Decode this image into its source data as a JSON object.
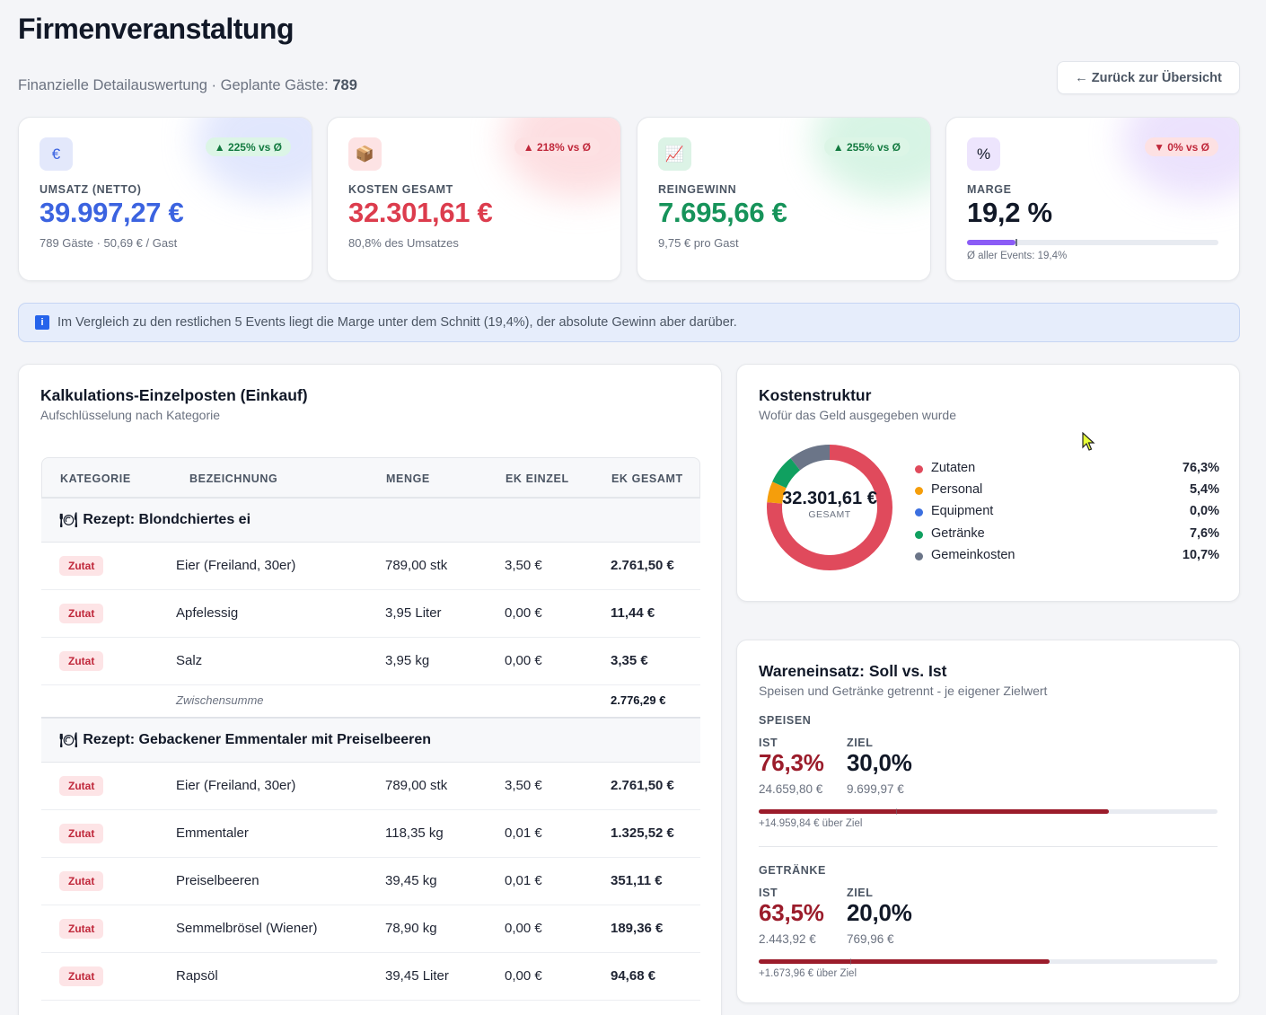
{
  "header": {
    "title": "Firmenveranstaltung",
    "subtitle_prefix": "Finanzielle Detailauswertung · Geplante Gäste:",
    "guests": "789",
    "back_label": "← Zurück zur Übersicht"
  },
  "kpis": [
    {
      "icon": "euro-icon",
      "icon_glyph": "€",
      "badge": "▲ 225% vs Ø",
      "label": "UMSATZ (NETTO)",
      "value": "39.997,27 €",
      "sub": "789 Gäste · 50,69 € / Gast",
      "color": "#3b63e0",
      "badge_bg": "#dcf5e6",
      "badge_fg": "#137a40",
      "icon_bg": "#e3e8fb",
      "glow": "#c9d3fb"
    },
    {
      "icon": "box-icon",
      "icon_glyph": "📦",
      "badge": "▲ 218% vs Ø",
      "label": "KOSTEN GESAMT",
      "value": "32.301,61 €",
      "sub": "80,8% des Umsatzes",
      "color": "#dc3c4d",
      "badge_bg": "#fde1e3",
      "badge_fg": "#c0283b",
      "icon_bg": "#fde3e4",
      "glow": "#fbc4c9"
    },
    {
      "icon": "chart-up-icon",
      "icon_glyph": "📈",
      "badge": "▲ 255% vs Ø",
      "label": "REINGEWINN",
      "value": "7.695,66 €",
      "sub": "9,75 € pro Gast",
      "color": "#16935a",
      "badge_bg": "#dcf5e6",
      "badge_fg": "#137a40",
      "icon_bg": "#dcf3e6",
      "glow": "#b7ebcf"
    },
    {
      "icon": "percent-icon",
      "icon_glyph": "%",
      "badge": "▼ 0% vs Ø",
      "label": "MARGE",
      "value": "19,2 %",
      "sub": "Ø aller Events: 19,4%",
      "color": "#111827",
      "badge_bg": "#fde1e3",
      "badge_fg": "#c0283b",
      "icon_bg": "#ede5fd",
      "glow": "#dccbfb",
      "bar_pct": 19.2,
      "avg_pct": 19.4
    }
  ],
  "info": {
    "icon": "info-icon",
    "text": "Im Vergleich zu den restlichen 5 Events liegt die Marge unter dem Schnitt (19,4%), der absolute Gewinn aber darüber."
  },
  "calc": {
    "title": "Kalkulations-Einzelposten (Einkauf)",
    "subtitle": "Aufschlüsselung nach Kategorie",
    "columns": [
      "KATEGORIE",
      "BEZEICHNUNG",
      "MENGE",
      "EK EINZEL",
      "EK GESAMT"
    ],
    "groups": [
      {
        "title": "Rezept: Blondchiertes ei",
        "rows": [
          {
            "tag": "Zutat",
            "name": "Eier (Freiland, 30er)",
            "qty": "789,00 stk",
            "unit": "3,50 €",
            "total": "2.761,50 €"
          },
          {
            "tag": "Zutat",
            "name": "Apfelessig",
            "qty": "3,95 Liter",
            "unit": "0,00 €",
            "total": "11,44 €"
          },
          {
            "tag": "Zutat",
            "name": "Salz",
            "qty": "3,95 kg",
            "unit": "0,00 €",
            "total": "3,35 €"
          }
        ],
        "subtotal_label": "Zwischensumme",
        "subtotal": "2.776,29 €"
      },
      {
        "title": "Rezept: Gebackener Emmentaler mit Preiselbeeren",
        "rows": [
          {
            "tag": "Zutat",
            "name": "Eier (Freiland, 30er)",
            "qty": "789,00 stk",
            "unit": "3,50 €",
            "total": "2.761,50 €"
          },
          {
            "tag": "Zutat",
            "name": "Emmentaler",
            "qty": "118,35 kg",
            "unit": "0,01 €",
            "total": "1.325,52 €"
          },
          {
            "tag": "Zutat",
            "name": "Preiselbeeren",
            "qty": "39,45 kg",
            "unit": "0,01 €",
            "total": "351,11 €"
          },
          {
            "tag": "Zutat",
            "name": "Semmelbrösel (Wiener)",
            "qty": "78,90 kg",
            "unit": "0,00 €",
            "total": "189,36 €"
          },
          {
            "tag": "Zutat",
            "name": "Rapsöl",
            "qty": "39,45 Liter",
            "unit": "0,00 €",
            "total": "94,68 €"
          }
        ]
      }
    ]
  },
  "cost_structure": {
    "title": "Kostenstruktur",
    "subtitle": "Wofür das Geld ausgegeben wurde",
    "center_value": "32.301,61 €",
    "center_label": "GESAMT",
    "items": [
      {
        "name": "Zutaten",
        "value": "76,3%",
        "pct": 76.3,
        "color": "#e04a5c"
      },
      {
        "name": "Personal",
        "value": "5,4%",
        "pct": 5.4,
        "color": "#f59e0b"
      },
      {
        "name": "Equipment",
        "value": "0,0%",
        "pct": 0.0,
        "color": "#3b6fe0"
      },
      {
        "name": "Getränke",
        "value": "7,6%",
        "pct": 7.6,
        "color": "#10a060"
      },
      {
        "name": "Gemeinkosten",
        "value": "10,7%",
        "pct": 10.7,
        "color": "#6b7588"
      }
    ]
  },
  "wareneinsatz": {
    "title": "Wareneinsatz: Soll vs. Ist",
    "subtitle": "Speisen und Getränke getrennt - je eigener Zielwert",
    "ist_label": "IST",
    "ziel_label": "ZIEL",
    "sections": [
      {
        "label": "SPEISEN",
        "ist": "76,3%",
        "ist_amount": "24.659,80 €",
        "ziel": "30,0%",
        "ziel_amount": "9.699,97 €",
        "ist_pct": 76.3,
        "ziel_pct": 30.0,
        "over": "+14.959,84 € über Ziel"
      },
      {
        "label": "GETRÄNKE",
        "ist": "63,5%",
        "ist_amount": "2.443,92 €",
        "ziel": "20,0%",
        "ziel_amount": "769,96 €",
        "ist_pct": 63.5,
        "ziel_pct": 20.0,
        "over": "+1.673,96 € über Ziel"
      }
    ]
  },
  "colors": {
    "ist": "#9b1c2b",
    "ziel": "#111827"
  }
}
